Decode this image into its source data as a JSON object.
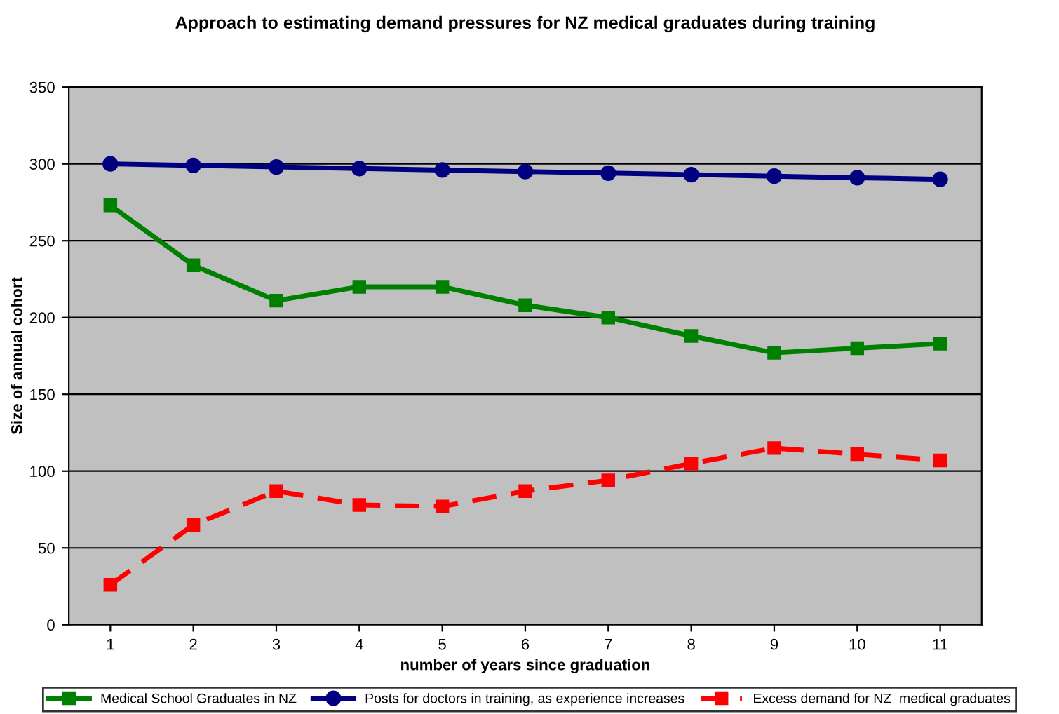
{
  "chart_data": {
    "type": "line",
    "title": "Approach to estimating demand pressures for NZ medical graduates during training",
    "xlabel": "number of years since graduation",
    "ylabel": "Size of annual cohort",
    "categories": [
      "1",
      "2",
      "3",
      "4",
      "5",
      "6",
      "7",
      "8",
      "9",
      "10",
      "11"
    ],
    "series": [
      {
        "name": "Medical School Graduates in NZ",
        "color": "#008000",
        "marker": "square",
        "line_style": "solid",
        "values": [
          273,
          234,
          211,
          220,
          220,
          208,
          200,
          188,
          177,
          180,
          183
        ]
      },
      {
        "name": "Posts for doctors in training, as experience increases",
        "color": "#000080",
        "marker": "circle",
        "line_style": "solid",
        "values": [
          300,
          299,
          298,
          297,
          296,
          295,
          294,
          293,
          292,
          291,
          290
        ]
      },
      {
        "name": "Excess demand for NZ  medical graduates",
        "color": "#ff0000",
        "marker": "square",
        "line_style": "dashed",
        "values": [
          26,
          65,
          87,
          78,
          77,
          87,
          94,
          105,
          115,
          111,
          107
        ]
      }
    ],
    "ylim": [
      0,
      350
    ],
    "yticks": [
      0,
      50,
      100,
      150,
      200,
      250,
      300,
      350
    ],
    "grid": "y",
    "legend": "bottom"
  }
}
